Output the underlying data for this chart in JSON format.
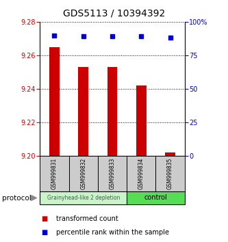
{
  "title": "GDS5113 / 10394392",
  "samples": [
    "GSM999831",
    "GSM999832",
    "GSM999833",
    "GSM999834",
    "GSM999835"
  ],
  "red_values": [
    9.265,
    9.253,
    9.253,
    9.242,
    9.202
  ],
  "blue_values": [
    90,
    89,
    89,
    89,
    88
  ],
  "ylim_left": [
    9.2,
    9.28
  ],
  "ylim_right": [
    0,
    100
  ],
  "yticks_left": [
    9.2,
    9.22,
    9.24,
    9.26,
    9.28
  ],
  "yticks_right": [
    0,
    25,
    50,
    75,
    100
  ],
  "ytick_labels_right": [
    "0",
    "25",
    "50",
    "75",
    "100%"
  ],
  "group1_label": "Grainyhead-like 2 depletion",
  "group2_label": "control",
  "group1_color": "#c8f5c8",
  "group2_color": "#55dd55",
  "bar_color": "#cc0000",
  "dot_color": "#0000cc",
  "legend_red_label": "transformed count",
  "legend_blue_label": "percentile rank within the sample",
  "protocol_label": "protocol",
  "bg_color": "#ffffff",
  "tick_label_color_left": "#cc0000",
  "tick_label_color_right": "#0000cc",
  "sample_box_color": "#cccccc"
}
